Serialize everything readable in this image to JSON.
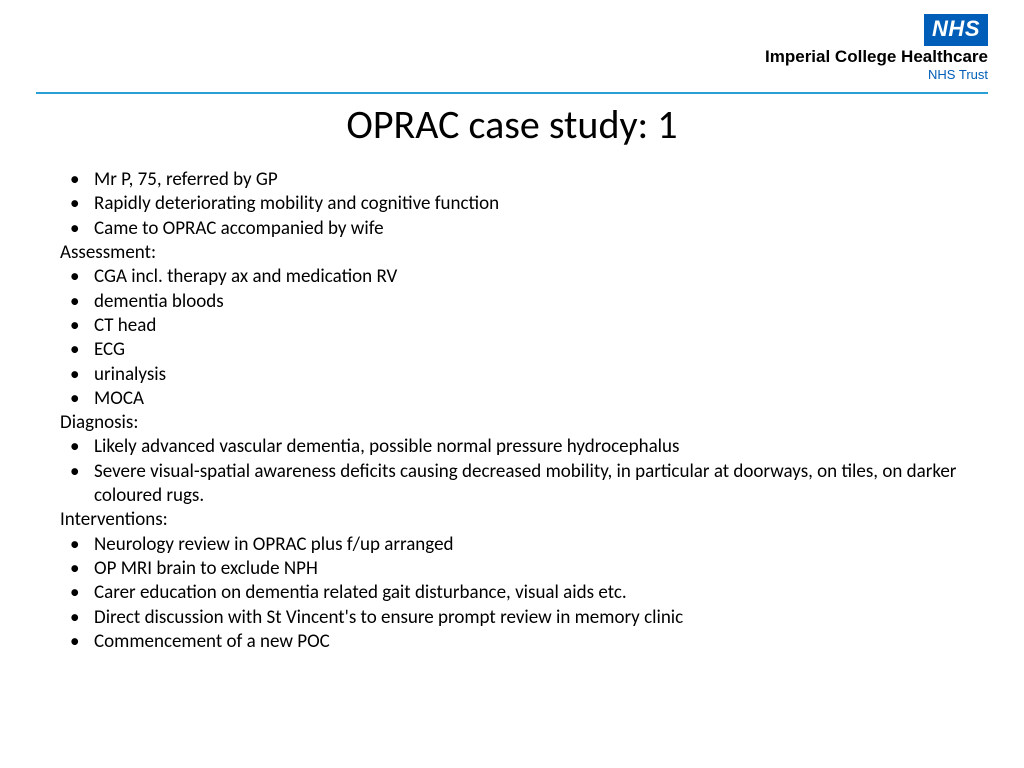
{
  "header": {
    "nhs_badge": "NHS",
    "org_line1": "Imperial College Healthcare",
    "org_line2": "NHS Trust"
  },
  "title": "OPRAC case study: 1",
  "sections": {
    "intro": [
      "Mr P, 75, referred by GP",
      "Rapidly deteriorating mobility and cognitive function",
      "Came to OPRAC accompanied by wife"
    ],
    "assessment_label": "Assessment:",
    "assessment": [
      "CGA incl. therapy ax and medication RV",
      "dementia bloods",
      "CT head",
      "ECG",
      "urinalysis",
      "MOCA"
    ],
    "diagnosis_label": "Diagnosis:",
    "diagnosis": [
      "Likely advanced vascular dementia, possible normal pressure hydrocephalus",
      "Severe visual-spatial awareness deficits causing decreased mobility, in particular at doorways, on tiles, on darker coloured rugs."
    ],
    "interventions_label": "Interventions:",
    "interventions": [
      "Neurology review in OPRAC plus f/up arranged",
      "OP MRI brain to exclude NPH",
      "Carer education on dementia related gait disturbance, visual aids etc.",
      "Direct discussion with St Vincent's to ensure prompt review in memory clinic",
      "Commencement of a new POC"
    ]
  },
  "style": {
    "background_color": "#ffffff",
    "text_color": "#000000",
    "nhs_blue": "#005eb8",
    "divider_color": "#2a9fd6",
    "title_fontsize": 40,
    "body_fontsize": 19
  }
}
